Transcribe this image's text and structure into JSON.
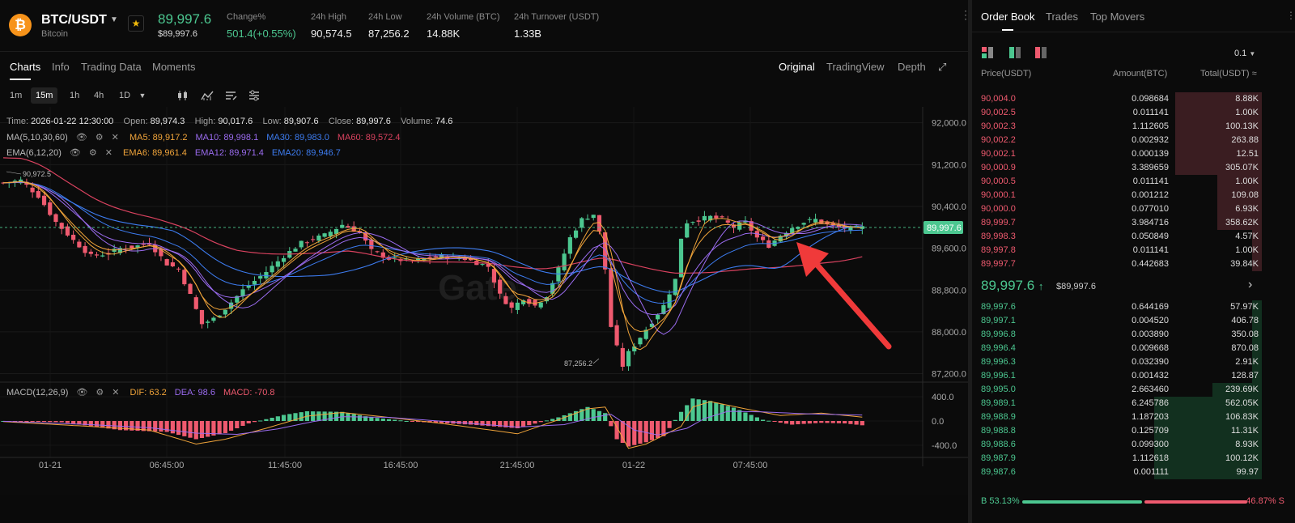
{
  "header": {
    "coin_glyph": "₿",
    "pair": "BTC/USDT",
    "pair_name": "Bitcoin",
    "last_price": "89,997.6",
    "last_price_fiat": "$89,997.6",
    "stats": [
      {
        "key": "Change%",
        "value": "501.4(+0.55%)",
        "tone": "green"
      },
      {
        "key": "24h High",
        "value": "90,574.5"
      },
      {
        "key": "24h Low",
        "value": "87,256.2"
      },
      {
        "key": "24h Volume (BTC)",
        "value": "14.88K"
      },
      {
        "key": "24h Turnover (USDT)",
        "value": "1.33B"
      }
    ]
  },
  "tabs": {
    "charts": "Charts",
    "info": "Info",
    "trading_data": "Trading Data",
    "moments": "Moments",
    "original": "Original",
    "tradingview": "TradingView",
    "depth": "Depth"
  },
  "intervals": [
    "1m",
    "15m",
    "1h",
    "4h",
    "1D"
  ],
  "selected_interval": "15m",
  "ohlc": {
    "time_label": "Time:",
    "time": "2026-01-22 12:30:00",
    "open_label": "Open:",
    "open": "89,974.3",
    "high_label": "High:",
    "high": "90,017.6",
    "low_label": "Low:",
    "low": "89,907.6",
    "close_label": "Close:",
    "close": "89,997.6",
    "volume_label": "Volume:",
    "volume": "74.6"
  },
  "indicators": {
    "ma": {
      "label": "MA(5,10,30,60)",
      "ma5": "MA5: 89,917.2",
      "ma10": "MA10: 89,998.1",
      "ma30": "MA30: 89,983.0",
      "ma60": "MA60: 89,572.4"
    },
    "ema": {
      "label": "EMA(6,12,20)",
      "ema6": "EMA6: 89,961.4",
      "ema12": "EMA12: 89,971.4",
      "ema20": "EMA20: 89,946.7"
    },
    "macd": {
      "label": "MACD(12,26,9)",
      "dif": "DIF: 63.2",
      "dea": "DEA: 98.6",
      "macd": "MACD: -70.8"
    }
  },
  "colors": {
    "up": "#4cc790",
    "down": "#ef5a6f",
    "ma5": "#f0a43a",
    "ma10": "#9b6cf0",
    "ma30": "#3d7cf0",
    "ma60": "#d9425f",
    "ema6": "#f0a43a",
    "ema12": "#9b6cf0",
    "ema20": "#3d7cf0",
    "arrow": "#f03a3a"
  },
  "chart_data": {
    "type": "candlestick",
    "y_ticks": [
      "92,000.0",
      "91,200.0",
      "90,400.0",
      "89,600.0",
      "88,800.0",
      "88,000.0",
      "87,200.0"
    ],
    "ylim": [
      87100,
      92150
    ],
    "x_ticks": [
      "01-21",
      "06:45:00",
      "11:45:00",
      "16:45:00",
      "21:45:00",
      "01-22",
      "07:45:00"
    ],
    "current_price_tag": "89,997.6",
    "high_marker": "90,972.5",
    "low_marker": "87,256.2",
    "macd_ticks": [
      "400.0",
      "0.0",
      "-400.0"
    ],
    "macd_ylim": [
      -560,
      560
    ],
    "watermark": "Gate",
    "anchors": [
      [
        0,
        90850
      ],
      [
        3,
        90900
      ],
      [
        6,
        90600
      ],
      [
        9,
        90100
      ],
      [
        12,
        89750
      ],
      [
        15,
        89450
      ],
      [
        18,
        89500
      ],
      [
        20,
        89600
      ],
      [
        22,
        89620
      ],
      [
        25,
        89700
      ],
      [
        28,
        89300
      ],
      [
        30,
        89200
      ],
      [
        32,
        88700
      ],
      [
        34,
        88150
      ],
      [
        36,
        88250
      ],
      [
        38,
        88450
      ],
      [
        41,
        88800
      ],
      [
        45,
        89150
      ],
      [
        48,
        89450
      ],
      [
        51,
        89700
      ],
      [
        55,
        89850
      ],
      [
        58,
        90050
      ],
      [
        61,
        89900
      ],
      [
        63,
        89550
      ],
      [
        66,
        89400
      ],
      [
        70,
        89350
      ],
      [
        75,
        89450
      ],
      [
        79,
        89400
      ],
      [
        83,
        89250
      ],
      [
        85,
        88700
      ],
      [
        87,
        88450
      ],
      [
        89,
        88650
      ],
      [
        91,
        88500
      ],
      [
        93,
        88700
      ],
      [
        95,
        89200
      ],
      [
        97,
        89800
      ],
      [
        99,
        90150
      ],
      [
        101,
        90250
      ],
      [
        102,
        89900
      ],
      [
        103,
        89200
      ],
      [
        104,
        88100
      ],
      [
        105,
        87700
      ],
      [
        106,
        87350
      ],
      [
        107,
        87600
      ],
      [
        109,
        87900
      ],
      [
        111,
        88200
      ],
      [
        113,
        88500
      ],
      [
        115,
        89000
      ],
      [
        116,
        89800
      ],
      [
        117,
        90100
      ],
      [
        119,
        90150
      ],
      [
        121,
        90200
      ],
      [
        123,
        90150
      ],
      [
        125,
        90000
      ],
      [
        127,
        90100
      ],
      [
        129,
        89800
      ],
      [
        131,
        89650
      ],
      [
        133,
        89850
      ],
      [
        135,
        90000
      ],
      [
        137,
        90100
      ],
      [
        139,
        90150
      ],
      [
        141,
        90050
      ],
      [
        143,
        90000
      ],
      [
        145,
        89980
      ],
      [
        147,
        89997.6
      ]
    ],
    "macd_anchors": [
      [
        0,
        0
      ],
      [
        10,
        -20
      ],
      [
        20,
        -150
      ],
      [
        28,
        -180
      ],
      [
        33,
        -300
      ],
      [
        38,
        -200
      ],
      [
        42,
        -40
      ],
      [
        48,
        100
      ],
      [
        52,
        160
      ],
      [
        58,
        150
      ],
      [
        63,
        60
      ],
      [
        70,
        -10
      ],
      [
        80,
        -60
      ],
      [
        88,
        -120
      ],
      [
        95,
        60
      ],
      [
        100,
        230
      ],
      [
        103,
        130
      ],
      [
        105,
        -300
      ],
      [
        107,
        -420
      ],
      [
        110,
        -350
      ],
      [
        113,
        -250
      ],
      [
        116,
        150
      ],
      [
        118,
        370
      ],
      [
        121,
        330
      ],
      [
        125,
        220
      ],
      [
        130,
        20
      ],
      [
        135,
        -60
      ],
      [
        140,
        -30
      ],
      [
        144,
        -40
      ],
      [
        147,
        -70.8
      ]
    ],
    "dif_anchors": [
      [
        0,
        -10
      ],
      [
        15,
        -90
      ],
      [
        25,
        -150
      ],
      [
        33,
        -380
      ],
      [
        38,
        -300
      ],
      [
        45,
        -120
      ],
      [
        52,
        80
      ],
      [
        58,
        140
      ],
      [
        65,
        70
      ],
      [
        75,
        -40
      ],
      [
        88,
        -210
      ],
      [
        95,
        20
      ],
      [
        100,
        200
      ],
      [
        103,
        230
      ],
      [
        105,
        -100
      ],
      [
        107,
        -450
      ],
      [
        110,
        -380
      ],
      [
        116,
        -90
      ],
      [
        118,
        230
      ],
      [
        121,
        320
      ],
      [
        127,
        200
      ],
      [
        133,
        90
      ],
      [
        140,
        130
      ],
      [
        147,
        63.2
      ]
    ],
    "dea_anchors": [
      [
        0,
        -5
      ],
      [
        15,
        -60
      ],
      [
        25,
        -110
      ],
      [
        33,
        -200
      ],
      [
        40,
        -220
      ],
      [
        47,
        -130
      ],
      [
        53,
        -10
      ],
      [
        58,
        70
      ],
      [
        66,
        60
      ],
      [
        76,
        -10
      ],
      [
        88,
        -100
      ],
      [
        96,
        -60
      ],
      [
        101,
        60
      ],
      [
        104,
        110
      ],
      [
        106,
        -20
      ],
      [
        108,
        -150
      ],
      [
        112,
        -230
      ],
      [
        117,
        -120
      ],
      [
        120,
        40
      ],
      [
        124,
        160
      ],
      [
        130,
        150
      ],
      [
        137,
        120
      ],
      [
        143,
        105
      ],
      [
        147,
        98.6
      ]
    ]
  },
  "orderbook": {
    "tabs": [
      "Order Book",
      "Trades",
      "Top Movers"
    ],
    "precision": "0.1",
    "columns": [
      "Price(USDT)",
      "Amount(BTC)",
      "Total(USDT)"
    ],
    "asks": [
      [
        "90,004.0",
        "0.098684",
        "8.88K",
        0.37
      ],
      [
        "90,002.5",
        "0.011141",
        "1.00K",
        0.37
      ],
      [
        "90,002.3",
        "1.112605",
        "100.13K",
        0.37
      ],
      [
        "90,002.2",
        "0.002932",
        "263.88",
        0.37
      ],
      [
        "90,002.1",
        "0.000139",
        "12.51",
        0.37
      ],
      [
        "90,000.9",
        "3.389659",
        "305.07K",
        0.37
      ],
      [
        "90,000.5",
        "0.011141",
        "1.00K",
        0.19
      ],
      [
        "90,000.1",
        "0.001212",
        "109.08",
        0.19
      ],
      [
        "90,000.0",
        "0.077010",
        "6.93K",
        0.19
      ],
      [
        "89,999.7",
        "3.984716",
        "358.62K",
        0.19
      ],
      [
        "89,998.3",
        "0.050849",
        "4.57K",
        0.04
      ],
      [
        "89,997.8",
        "0.011141",
        "1.00K",
        0.04
      ],
      [
        "89,997.7",
        "0.442683",
        "39.84K",
        0.04
      ]
    ],
    "mid_price": "89,997.6",
    "mid_arrow": "↑",
    "mid_fiat": "$89,997.6",
    "mid_chevron": "›",
    "bids": [
      [
        "89,997.6",
        "0.644169",
        "57.97K",
        0.04
      ],
      [
        "89,997.1",
        "0.004520",
        "406.78",
        0.04
      ],
      [
        "89,996.8",
        "0.003890",
        "350.08",
        0.04
      ],
      [
        "89,996.4",
        "0.009668",
        "870.08",
        0.04
      ],
      [
        "89,996.3",
        "0.032390",
        "2.91K",
        0.04
      ],
      [
        "89,996.1",
        "0.001432",
        "128.87",
        0.04
      ],
      [
        "89,995.0",
        "2.663460",
        "239.69K",
        0.21
      ],
      [
        "89,989.1",
        "6.245786",
        "562.05K",
        0.46
      ],
      [
        "89,988.9",
        "1.187203",
        "106.83K",
        0.46
      ],
      [
        "89,988.8",
        "0.125709",
        "11.31K",
        0.46
      ],
      [
        "89,988.6",
        "0.099300",
        "8.93K",
        0.46
      ],
      [
        "89,987.9",
        "1.112618",
        "100.12K",
        0.46
      ],
      [
        "89,987.6",
        "0.001111",
        "99.97",
        0.46
      ]
    ],
    "buy_ratio": "B 53.13%",
    "sell_ratio": "46.87% S"
  }
}
